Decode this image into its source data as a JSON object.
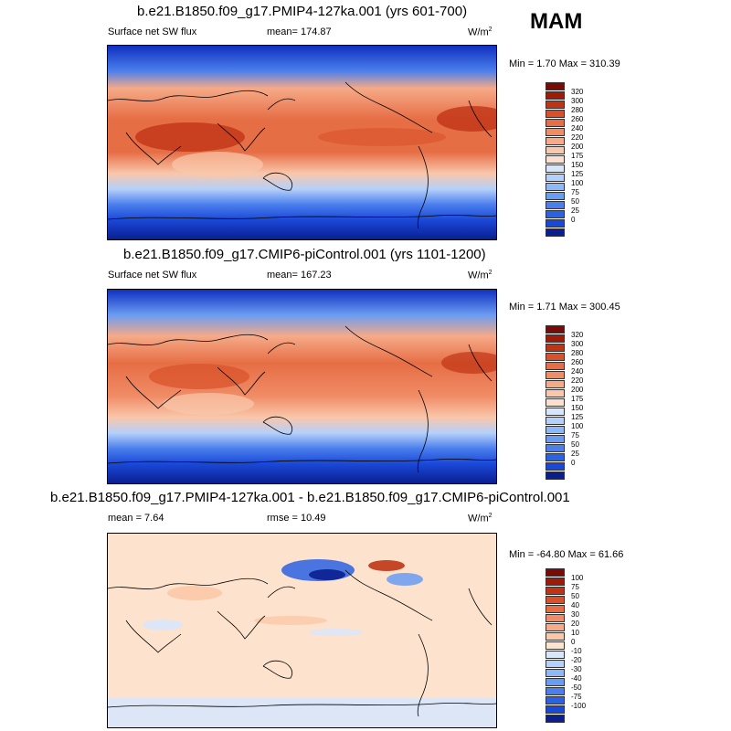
{
  "season": "MAM",
  "colors": {
    "sw_scale": [
      "#0a1f8f",
      "#1030c0",
      "#1a48d8",
      "#2a62e4",
      "#4a7fec",
      "#6a9cf2",
      "#8fb8f6",
      "#b5d0fa",
      "#d8e6fc",
      "#fbe0cf",
      "#f9c7ab",
      "#f6aa88",
      "#f08c66",
      "#e66e45",
      "#d8512a",
      "#c03416",
      "#a01a0a",
      "#7a0a05"
    ],
    "diff_scale": [
      "#0a1f8f",
      "#1030c0",
      "#1a48d8",
      "#2a62e4",
      "#4a7fec",
      "#6a9cf2",
      "#8fb8f6",
      "#b5d0fa",
      "#d8e6fc",
      "#fde3cd",
      "#fbc8a8",
      "#f6aa88",
      "#f08c66",
      "#e66e45",
      "#d8512a",
      "#c03416",
      "#a01a0a",
      "#7a0a05"
    ],
    "map_bg_high": "#d8512a",
    "map_bg_low": "#0a2aa0"
  },
  "panels": [
    {
      "title": "b.e21.B1850.f09_g17.PMIP4-127ka.001 (yrs 601-700)",
      "variable": "Surface net SW flux",
      "mean": "mean= 174.87",
      "units": "W/m",
      "units_sup": "2",
      "minmax": "Min =   1.70 Max = 310.39",
      "levels": [
        "320",
        "300",
        "280",
        "260",
        "240",
        "220",
        "200",
        "175",
        "150",
        "125",
        "100",
        "75",
        "50",
        "25",
        "0"
      ]
    },
    {
      "title": "b.e21.B1850.f09_g17.CMIP6-piControl.001 (yrs 1101-1200)",
      "variable": "Surface net SW flux",
      "mean": "mean= 167.23",
      "units": "W/m",
      "units_sup": "2",
      "minmax": "Min =   1.71 Max = 300.45",
      "levels": [
        "320",
        "300",
        "280",
        "260",
        "240",
        "220",
        "200",
        "175",
        "150",
        "125",
        "100",
        "75",
        "50",
        "25",
        "0"
      ]
    },
    {
      "title": "b.e21.B1850.f09_g17.PMIP4-127ka.001 - b.e21.B1850.f09_g17.CMIP6-piControl.001",
      "mean": "mean =   7.64",
      "rmse": "rmse =  10.49",
      "units": "W/m",
      "units_sup": "2",
      "minmax": "Min = -64.80 Max =  61.66",
      "levels": [
        "100",
        "75",
        "50",
        "40",
        "30",
        "20",
        "10",
        "0",
        "-10",
        "-20",
        "-30",
        "-40",
        "-50",
        "-75",
        "-100"
      ]
    }
  ]
}
